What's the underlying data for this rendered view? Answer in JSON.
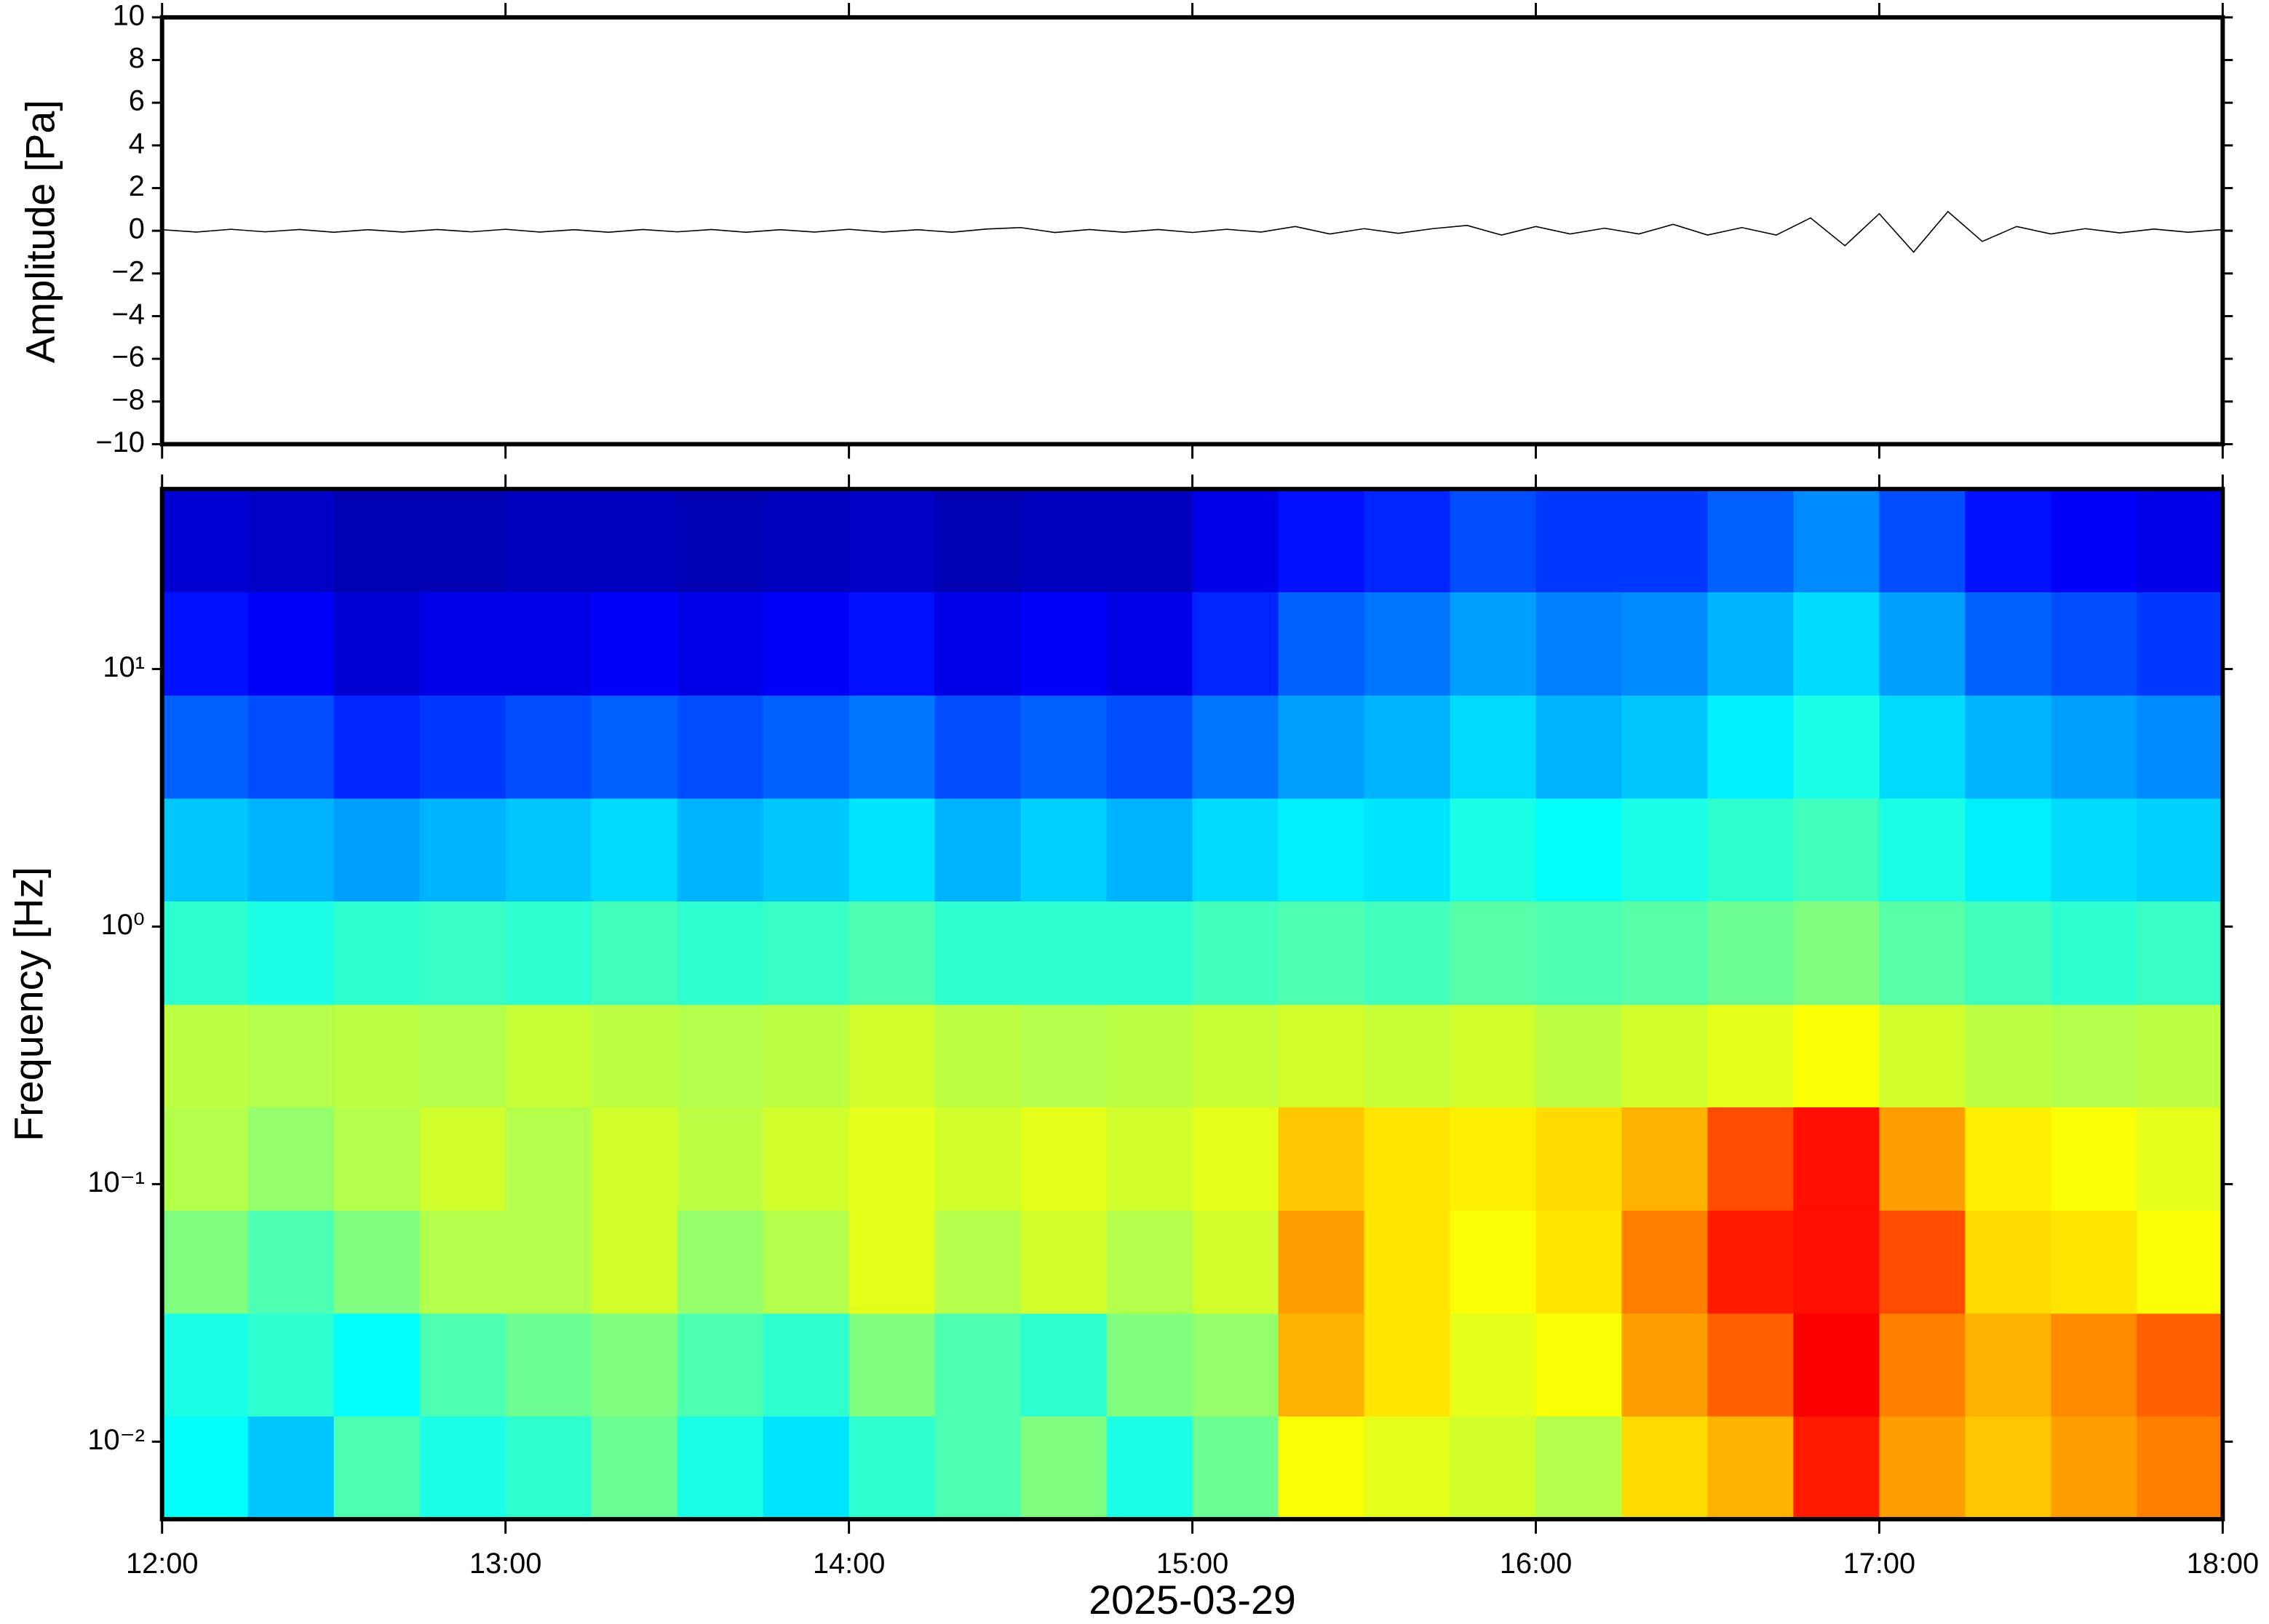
{
  "chart_data": [
    {
      "type": "line",
      "ylabel": "Amplitude [Pa]",
      "color": "#000000",
      "xlim": [
        12,
        18
      ],
      "xticks": [
        12,
        13,
        14,
        15,
        16,
        17,
        18
      ],
      "ylim": [
        -10,
        10
      ],
      "yticks": [
        {
          "value": -10,
          "label": "−10"
        },
        {
          "value": -8,
          "label": "−8"
        },
        {
          "value": -6,
          "label": "−6"
        },
        {
          "value": -4,
          "label": "−4"
        },
        {
          "value": -2,
          "label": "−2"
        },
        0,
        2,
        4,
        6,
        8,
        10
      ],
      "x": [
        12.0,
        12.1,
        12.2,
        12.3,
        12.4,
        12.5,
        12.6,
        12.7,
        12.8,
        12.9,
        13.0,
        13.1,
        13.2,
        13.3,
        13.4,
        13.5,
        13.6,
        13.7,
        13.8,
        13.9,
        14.0,
        14.1,
        14.2,
        14.3,
        14.4,
        14.5,
        14.6,
        14.7,
        14.8,
        14.9,
        15.0,
        15.1,
        15.2,
        15.3,
        15.4,
        15.5,
        15.6,
        15.7,
        15.8,
        15.9,
        16.0,
        16.1,
        16.2,
        16.3,
        16.4,
        16.5,
        16.6,
        16.7,
        16.8,
        16.9,
        17.0,
        17.1,
        17.2,
        17.3,
        17.4,
        17.5,
        17.6,
        17.7,
        17.8,
        17.9,
        18.0
      ],
      "values": [
        0.05,
        -0.06,
        0.07,
        -0.05,
        0.06,
        -0.07,
        0.05,
        -0.06,
        0.06,
        -0.05,
        0.07,
        -0.06,
        0.05,
        -0.07,
        0.06,
        -0.05,
        0.06,
        -0.07,
        0.05,
        -0.06,
        0.07,
        -0.06,
        0.05,
        -0.07,
        0.08,
        0.15,
        -0.08,
        0.06,
        -0.07,
        0.06,
        -0.08,
        0.07,
        -0.06,
        0.2,
        -0.15,
        0.1,
        -0.12,
        0.1,
        0.25,
        -0.2,
        0.2,
        -0.15,
        0.12,
        -0.15,
        0.3,
        -0.2,
        0.15,
        -0.2,
        0.6,
        -0.7,
        0.8,
        -1.0,
        0.9,
        -0.5,
        0.2,
        -0.15,
        0.1,
        -0.1,
        0.08,
        -0.07,
        0.06
      ]
    },
    {
      "type": "heatmap",
      "ylabel": "Frequency [Hz]",
      "xlabel": "2025-03-29",
      "colormap": "jet",
      "log_y": true,
      "xlim": [
        12,
        18
      ],
      "xticks": [
        {
          "value": 12,
          "label": "12:00"
        },
        {
          "value": 13,
          "label": "13:00"
        },
        {
          "value": 14,
          "label": "14:00"
        },
        {
          "value": 15,
          "label": "15:00"
        },
        {
          "value": 16,
          "label": "16:00"
        },
        {
          "value": 17,
          "label": "17:00"
        },
        {
          "value": 18,
          "label": "18:00"
        }
      ],
      "ylim": [
        0.005,
        50
      ],
      "yticks": [
        {
          "value": 0.01,
          "label": "10⁻²"
        },
        {
          "value": 0.1,
          "label": "10⁻¹"
        },
        {
          "value": 1,
          "label": "10⁰"
        },
        {
          "value": 10,
          "label": "10¹"
        }
      ],
      "xbins": [
        12.0,
        12.25,
        12.5,
        12.75,
        13.0,
        13.25,
        13.5,
        13.75,
        14.0,
        14.25,
        14.5,
        14.75,
        15.0,
        15.25,
        15.5,
        15.75,
        16.0,
        16.25,
        16.5,
        16.75,
        17.0,
        17.25,
        17.5,
        17.75,
        18.0
      ],
      "ybins": [
        0.005,
        0.0126,
        0.0316,
        0.0794,
        0.2,
        0.5,
        1.26,
        3.16,
        7.94,
        20,
        50
      ],
      "z": [
        [
          0.38,
          0.32,
          0.45,
          0.4,
          0.42,
          0.48,
          0.4,
          0.35,
          0.42,
          0.45,
          0.5,
          0.4,
          0.48,
          0.62,
          0.6,
          0.58,
          0.55,
          0.66,
          0.7,
          0.85,
          0.72,
          0.68,
          0.72,
          0.75
        ],
        [
          0.4,
          0.42,
          0.38,
          0.45,
          0.48,
          0.5,
          0.45,
          0.42,
          0.5,
          0.45,
          0.42,
          0.5,
          0.52,
          0.7,
          0.65,
          0.6,
          0.62,
          0.72,
          0.78,
          0.88,
          0.75,
          0.7,
          0.74,
          0.78
        ],
        [
          0.5,
          0.45,
          0.5,
          0.55,
          0.55,
          0.58,
          0.52,
          0.55,
          0.6,
          0.55,
          0.58,
          0.55,
          0.58,
          0.72,
          0.65,
          0.62,
          0.65,
          0.75,
          0.85,
          0.86,
          0.8,
          0.66,
          0.65,
          0.62
        ],
        [
          0.55,
          0.52,
          0.55,
          0.58,
          0.55,
          0.58,
          0.56,
          0.58,
          0.6,
          0.58,
          0.6,
          0.58,
          0.6,
          0.68,
          0.65,
          0.64,
          0.66,
          0.7,
          0.8,
          0.86,
          0.72,
          0.64,
          0.62,
          0.6
        ],
        [
          0.56,
          0.55,
          0.56,
          0.55,
          0.57,
          0.56,
          0.55,
          0.56,
          0.58,
          0.56,
          0.55,
          0.56,
          0.57,
          0.58,
          0.57,
          0.58,
          0.56,
          0.58,
          0.6,
          0.62,
          0.58,
          0.56,
          0.55,
          0.56
        ],
        [
          0.42,
          0.4,
          0.42,
          0.43,
          0.42,
          0.44,
          0.42,
          0.43,
          0.45,
          0.42,
          0.42,
          0.42,
          0.44,
          0.45,
          0.44,
          0.46,
          0.45,
          0.46,
          0.48,
          0.5,
          0.46,
          0.44,
          0.42,
          0.43
        ],
        [
          0.32,
          0.3,
          0.28,
          0.3,
          0.32,
          0.34,
          0.3,
          0.32,
          0.35,
          0.3,
          0.33,
          0.3,
          0.34,
          0.36,
          0.35,
          0.4,
          0.38,
          0.4,
          0.42,
          0.44,
          0.4,
          0.36,
          0.34,
          0.33
        ],
        [
          0.22,
          0.2,
          0.16,
          0.18,
          0.2,
          0.22,
          0.2,
          0.22,
          0.24,
          0.2,
          0.22,
          0.2,
          0.24,
          0.28,
          0.3,
          0.34,
          0.3,
          0.32,
          0.36,
          0.4,
          0.34,
          0.3,
          0.28,
          0.26
        ],
        [
          0.14,
          0.12,
          0.08,
          0.1,
          0.1,
          0.12,
          0.1,
          0.12,
          0.14,
          0.1,
          0.12,
          0.1,
          0.16,
          0.22,
          0.24,
          0.28,
          0.25,
          0.26,
          0.3,
          0.34,
          0.28,
          0.22,
          0.2,
          0.18
        ],
        [
          0.08,
          0.07,
          0.05,
          0.05,
          0.06,
          0.06,
          0.05,
          0.06,
          0.07,
          0.05,
          0.06,
          0.06,
          0.1,
          0.14,
          0.16,
          0.2,
          0.18,
          0.18,
          0.22,
          0.26,
          0.2,
          0.14,
          0.12,
          0.1
        ]
      ]
    }
  ]
}
